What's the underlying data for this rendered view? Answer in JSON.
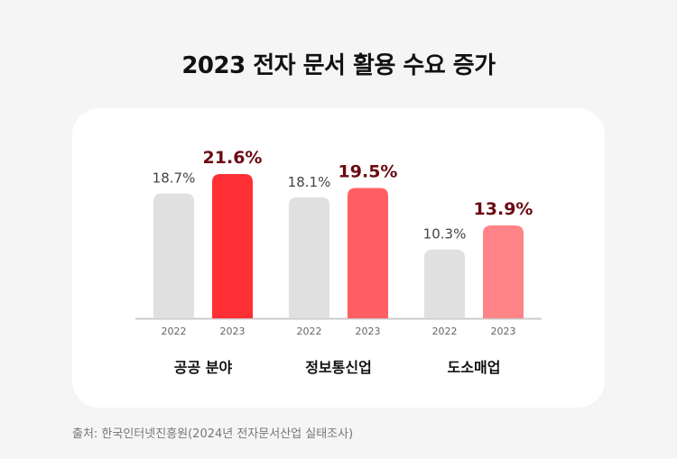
{
  "title": "2023 전자 문서 활용 수요 증가",
  "source": "출처: 한국인터넷진흥원(2024년 전자문서산업 실태조사)",
  "chart_data": {
    "type": "bar",
    "title": "2023 전자 문서 활용 수요 증가",
    "categories": [
      "공공 분야",
      "정보통신업",
      "도소매업"
    ],
    "series": [
      {
        "name": "2022",
        "values": [
          18.7,
          18.1,
          10.3
        ],
        "labels": [
          "18.7%",
          "18.1%",
          "10.3%"
        ],
        "colors": [
          "#e0e0e0",
          "#e0e0e0",
          "#e0e0e0"
        ]
      },
      {
        "name": "2023",
        "values": [
          21.6,
          19.5,
          13.9
        ],
        "labels": [
          "21.6%",
          "19.5%",
          "13.9%"
        ],
        "colors": [
          "#ff3035",
          "#ff5f63",
          "#ff8487"
        ]
      }
    ],
    "ylim": [
      0,
      27
    ],
    "unit": "%",
    "grid": false,
    "colors": {
      "label_2022": "#444444",
      "label_2023": "#6b0a12",
      "axis": "#cccccc",
      "year_label": "#666666"
    }
  }
}
